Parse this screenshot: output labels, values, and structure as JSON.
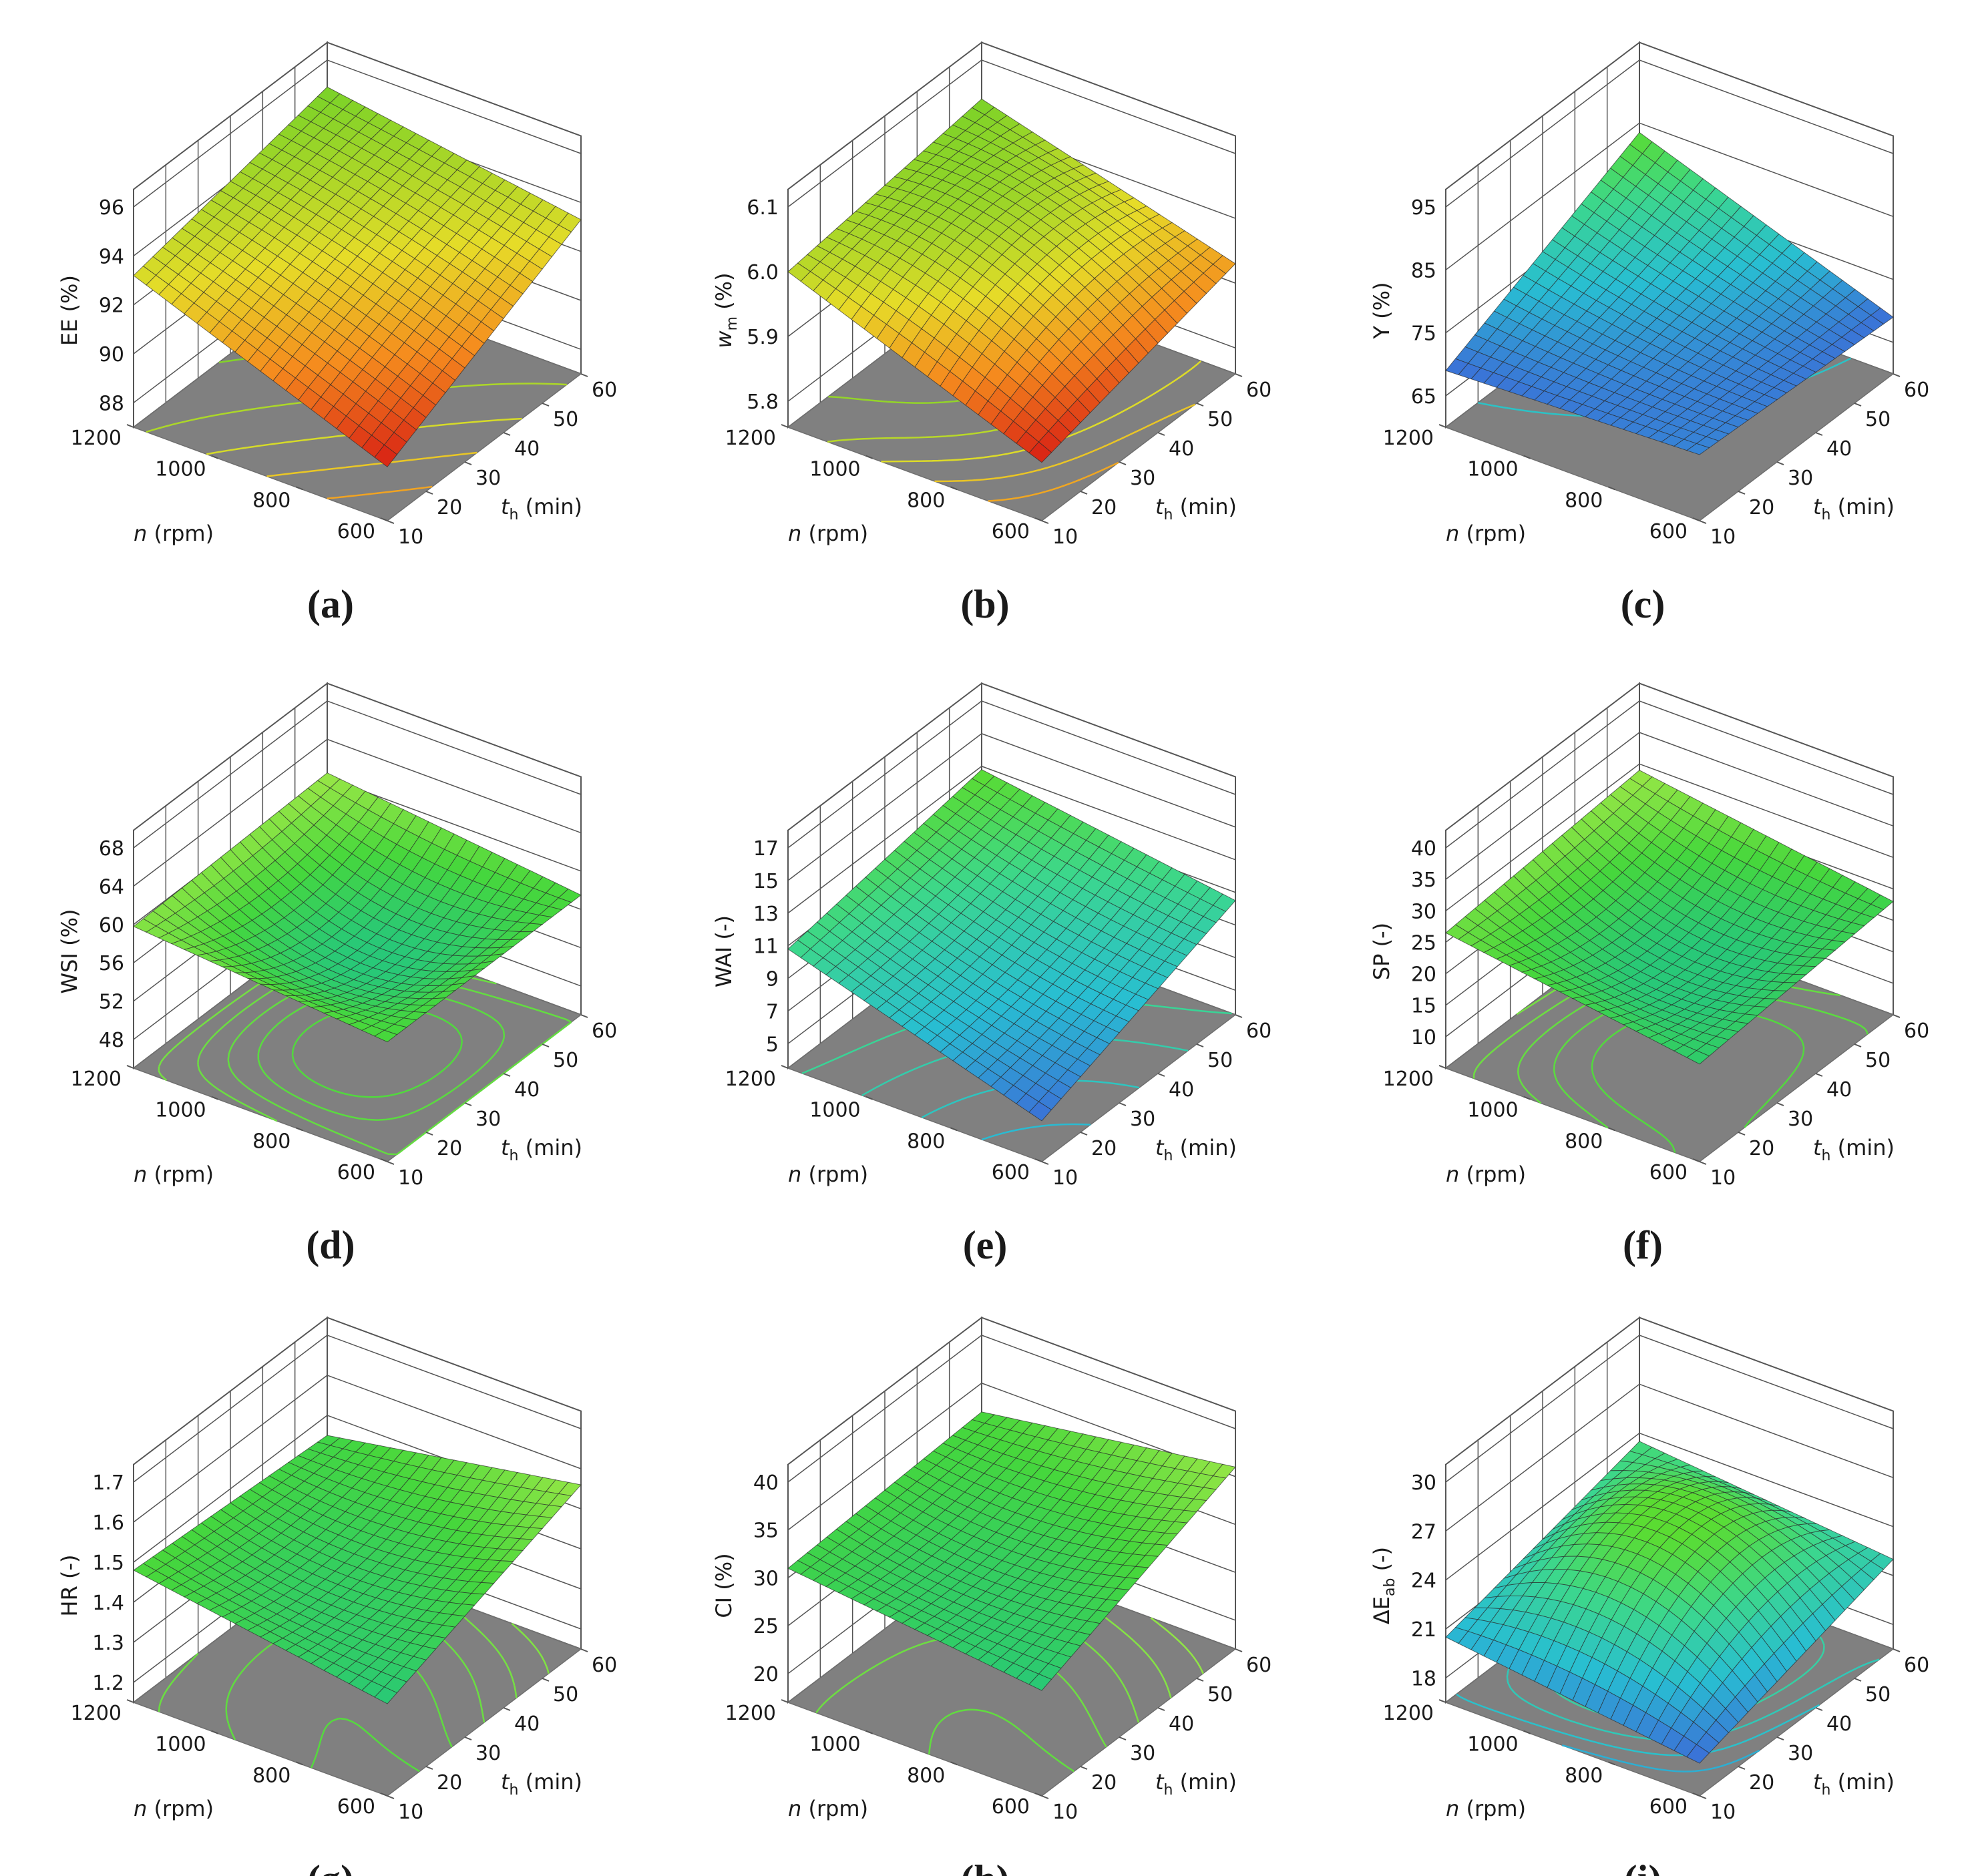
{
  "figure": {
    "panels_per_row": 3,
    "shared_axes": {
      "n": {
        "label_var": "n",
        "label_unit": " (rpm)",
        "ticks": [
          "600",
          "800",
          "1000",
          "1200"
        ],
        "range": [
          600,
          1200
        ]
      },
      "th": {
        "label_var": "t",
        "label_sub": "h",
        "label_unit": " (min)",
        "ticks": [
          "10",
          "20",
          "30",
          "40",
          "50",
          "60"
        ],
        "range": [
          10,
          60
        ]
      }
    },
    "colors": {
      "floor": "#808080",
      "mesh": "#2a2a2a",
      "grid": "#555555",
      "text": "#1a1a1a"
    }
  },
  "chart_data": [
    {
      "type": "surface",
      "panel_label": "(a)",
      "zlabel": "EE (%)",
      "zticks": [
        "88",
        "90",
        "92",
        "94",
        "96"
      ],
      "zlim": [
        87,
        96
      ],
      "colormap": "warm",
      "corner_values": {
        "n600_t10": 89.2,
        "n1200_t10": 93.2,
        "n600_t60": 93.3,
        "n1200_t60": 94.9
      },
      "center_value": 92.9,
      "contours": 5
    },
    {
      "type": "surface",
      "panel_label": "(b)",
      "zlabel": "w_m (%)",
      "zlabel_var": "w",
      "zlabel_sub": "m",
      "zlabel_unit": " (%)",
      "zticks": [
        "5.8",
        "5.9",
        "6.0",
        "6.1"
      ],
      "zlim": [
        5.76,
        6.1
      ],
      "colormap": "warm",
      "corner_values": {
        "n600_t10": 5.85,
        "n1200_t10": 6.0,
        "n600_t60": 5.93,
        "n1200_t60": 6.04
      },
      "center_value": 6.0,
      "contours": 5
    },
    {
      "type": "surface",
      "panel_label": "(c)",
      "zlabel": "Y (%)",
      "zticks": [
        "65",
        "75",
        "85",
        "95"
      ],
      "zlim": [
        60,
        95
      ],
      "colormap": "cool",
      "corner_values": {
        "n600_t10": 70.5,
        "n1200_t10": 69.0,
        "n600_t60": 69.0,
        "n1200_t60": 83.5
      },
      "center_value": 72.0,
      "contours": 5
    },
    {
      "type": "surface",
      "panel_label": "(d)",
      "zlabel": "WSI (%)",
      "zticks": [
        "48",
        "52",
        "56",
        "60",
        "64",
        "68"
      ],
      "zlim": [
        45,
        68
      ],
      "colormap": "green",
      "corner_values": {
        "n600_t10": 57.5,
        "n1200_t10": 59.8,
        "n600_t60": 57.5,
        "n1200_t60": 60.5
      },
      "center_value": 54.5,
      "contours": 5
    },
    {
      "type": "surface",
      "panel_label": "(e)",
      "zlabel": "WAI (-)",
      "zticks": [
        "5",
        "7",
        "9",
        "11",
        "13",
        "15",
        "17"
      ],
      "zlim": [
        3.5,
        17
      ],
      "colormap": "cool",
      "corner_values": {
        "n600_t10": 6.0,
        "n1200_t10": 10.8,
        "n600_t60": 10.5,
        "n1200_t60": 12.8
      },
      "center_value": 9.4,
      "contours": 5
    },
    {
      "type": "surface",
      "panel_label": "(f)",
      "zlabel": "SP (-)",
      "zticks": [
        "10",
        "15",
        "20",
        "25",
        "30",
        "35",
        "40"
      ],
      "zlim": [
        5,
        40
      ],
      "colormap": "green",
      "corner_values": {
        "n600_t10": 20.5,
        "n1200_t10": 26.5,
        "n600_t60": 23.0,
        "n1200_t60": 29.0
      },
      "center_value": 19.5,
      "contours": 5
    },
    {
      "type": "surface",
      "panel_label": "(g)",
      "zlabel": "HR (-)",
      "zticks": [
        "1.2",
        "1.3",
        "1.4",
        "1.5",
        "1.6",
        "1.7"
      ],
      "zlim": [
        1.15,
        1.7
      ],
      "colormap": "green",
      "corner_values": {
        "n600_t10": 1.38,
        "n1200_t10": 1.48,
        "n600_t60": 1.56,
        "n1200_t60": 1.45
      },
      "center_value": 1.42,
      "contours": 5
    },
    {
      "type": "surface",
      "panel_label": "(h)",
      "zlabel": "CI (%)",
      "zticks": [
        "20",
        "25",
        "30",
        "35",
        "40"
      ],
      "zlim": [
        17,
        40
      ],
      "colormap": "green",
      "corner_values": {
        "n600_t10": 28.0,
        "n1200_t10": 31.0,
        "n600_t60": 36.0,
        "n1200_t60": 32.0
      },
      "center_value": 30.0,
      "contours": 5
    },
    {
      "type": "surface",
      "panel_label": "(i)",
      "zlabel": "ΔE_ab (-)",
      "zlabel_var": "ΔE",
      "zlabel_sub": "ab",
      "zlabel_unit": " (-)",
      "zticks": [
        "18",
        "21",
        "24",
        "27",
        "30"
      ],
      "zlim": [
        16.5,
        30
      ],
      "colormap": "cool",
      "corner_values": {
        "n600_t10": 18.5,
        "n1200_t10": 20.5,
        "n600_t60": 22.0,
        "n1200_t60": 23.5
      },
      "center_value": 25.0,
      "contours": 5
    }
  ]
}
